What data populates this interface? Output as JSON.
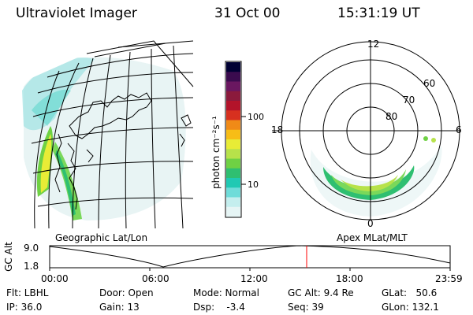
{
  "header": {
    "instrument": "Ultraviolet Imager",
    "date": "31 Oct 00",
    "time": "15:31:19 UT"
  },
  "colorbar": {
    "unit": "photon cm⁻²s⁻¹",
    "ticks": [
      "100",
      "10"
    ],
    "colors": [
      "#000033",
      "#3a0b4e",
      "#6a1760",
      "#8b1a3c",
      "#b3132a",
      "#d7301f",
      "#f08a17",
      "#f7bd16",
      "#e8ec36",
      "#b7e24a",
      "#6fd144",
      "#2fbf71",
      "#20c9b3",
      "#6fdcd9",
      "#c4eeee",
      "#e6f5f5"
    ]
  },
  "geographic": {
    "label": "Geographic Lat/Lon"
  },
  "polar": {
    "label": "Apex  MLat/MLT",
    "mlt_labels": {
      "top": "12",
      "left": "18",
      "right": "6",
      "bottom": "0"
    },
    "lat_labels": [
      "60",
      "70",
      "80"
    ]
  },
  "altplot": {
    "axis_label": "GC Alt",
    "y_ticks": [
      "9.0",
      "1.8"
    ],
    "x_ticks": [
      "00:00",
      "06:00",
      "12:00",
      "18:00",
      "23:59"
    ],
    "marker_time": "15:31"
  },
  "info": {
    "filter": "Flt: LBHL",
    "ip": "IP: 36.0",
    "door": "Door: Open",
    "gain": "Gain: 13",
    "mode": "Mode: Normal",
    "dsp": "Dsp:    -3.4",
    "gc_alt": "GC Alt: 9.4 Re",
    "seq": "Seq: 39",
    "glat": "GLat:   50.6",
    "glon": "GLon: 132.1"
  }
}
